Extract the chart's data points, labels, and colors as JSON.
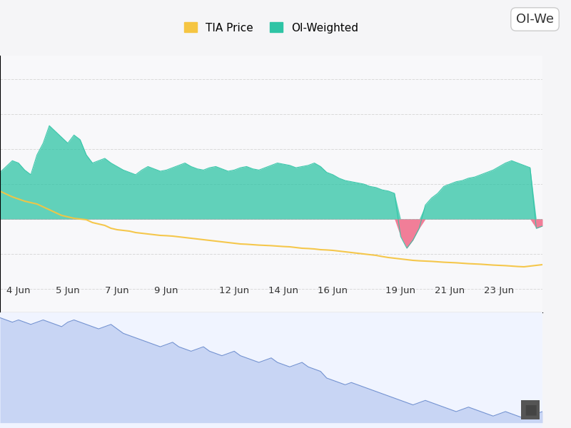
{
  "title": "OI-We",
  "legend_items": [
    "TIA Price",
    "OI-Weighted"
  ],
  "legend_colors": [
    "#f5c542",
    "#2ec4a5"
  ],
  "xtick_labels": [
    "4 Jun",
    "5 Jun",
    "7 Jun",
    "9 Jun",
    "12 Jun",
    "14 Jun",
    "16 Jun",
    "19 Jun",
    "21 Jun",
    "23 Jun"
  ],
  "xtick_positions": [
    3,
    11,
    19,
    27,
    38,
    46,
    54,
    65,
    73,
    81
  ],
  "background_color": "#f5f5f7",
  "main_bg": "#ffffff",
  "tia_price_color": "#f5c542",
  "oi_pos_color": "#2ec4a5",
  "oi_pos_fill": "#2ec4a5",
  "oi_neg_color": "#f06080",
  "oi_neg_fill": "#f06080",
  "oi_baseline": 0.0,
  "oi_data": [
    0.04,
    0.045,
    0.05,
    0.048,
    0.042,
    0.038,
    0.055,
    0.065,
    0.08,
    0.075,
    0.07,
    0.065,
    0.072,
    0.068,
    0.055,
    0.048,
    0.05,
    0.052,
    0.048,
    0.045,
    0.042,
    0.04,
    0.038,
    0.042,
    0.045,
    0.043,
    0.041,
    0.042,
    0.044,
    0.046,
    0.048,
    0.045,
    0.043,
    0.042,
    0.044,
    0.045,
    0.043,
    0.041,
    0.042,
    0.044,
    0.045,
    0.043,
    0.042,
    0.044,
    0.046,
    0.048,
    0.047,
    0.046,
    0.044,
    0.045,
    0.046,
    0.048,
    0.045,
    0.04,
    0.038,
    0.035,
    0.033,
    0.032,
    0.031,
    0.03,
    0.028,
    0.027,
    0.025,
    0.024,
    0.022,
    -0.015,
    -0.025,
    -0.018,
    -0.008,
    0.012,
    0.018,
    0.022,
    0.028,
    0.03,
    0.032,
    0.033,
    0.035,
    0.036,
    0.038,
    0.04,
    0.042,
    0.045,
    0.048,
    0.05,
    0.048,
    0.046,
    0.044,
    -0.008,
    -0.006
  ],
  "price_data": [
    8.5,
    8.3,
    8.1,
    7.95,
    7.8,
    7.7,
    7.6,
    7.4,
    7.2,
    7.0,
    6.8,
    6.7,
    6.6,
    6.55,
    6.5,
    6.3,
    6.2,
    6.1,
    5.9,
    5.8,
    5.75,
    5.7,
    5.6,
    5.55,
    5.5,
    5.45,
    5.4,
    5.38,
    5.35,
    5.3,
    5.25,
    5.2,
    5.15,
    5.1,
    5.05,
    5.0,
    4.95,
    4.9,
    4.85,
    4.8,
    4.78,
    4.75,
    4.72,
    4.7,
    4.68,
    4.65,
    4.62,
    4.6,
    4.55,
    4.5,
    4.48,
    4.45,
    4.4,
    4.38,
    4.35,
    4.3,
    4.25,
    4.2,
    4.15,
    4.1,
    4.05,
    4.0,
    3.92,
    3.85,
    3.8,
    3.75,
    3.7,
    3.65,
    3.62,
    3.6,
    3.58,
    3.55,
    3.52,
    3.5,
    3.48,
    3.45,
    3.42,
    3.4,
    3.38,
    3.35,
    3.32,
    3.3,
    3.28,
    3.25,
    3.22,
    3.2,
    3.25,
    3.3,
    3.35
  ],
  "oi_panel_data": [
    0.85,
    0.84,
    0.83,
    0.84,
    0.83,
    0.82,
    0.83,
    0.84,
    0.83,
    0.82,
    0.81,
    0.83,
    0.84,
    0.83,
    0.82,
    0.81,
    0.8,
    0.81,
    0.82,
    0.8,
    0.78,
    0.77,
    0.76,
    0.75,
    0.74,
    0.73,
    0.72,
    0.73,
    0.74,
    0.72,
    0.71,
    0.7,
    0.71,
    0.72,
    0.7,
    0.69,
    0.68,
    0.69,
    0.7,
    0.68,
    0.67,
    0.66,
    0.65,
    0.66,
    0.67,
    0.65,
    0.64,
    0.63,
    0.64,
    0.65,
    0.63,
    0.62,
    0.61,
    0.58,
    0.57,
    0.56,
    0.55,
    0.56,
    0.55,
    0.54,
    0.53,
    0.52,
    0.51,
    0.5,
    0.49,
    0.48,
    0.47,
    0.46,
    0.47,
    0.48,
    0.47,
    0.46,
    0.45,
    0.44,
    0.43,
    0.44,
    0.45,
    0.44,
    0.43,
    0.42,
    0.41,
    0.42,
    0.43,
    0.42,
    0.41,
    0.4,
    0.41,
    0.42,
    0.43
  ]
}
